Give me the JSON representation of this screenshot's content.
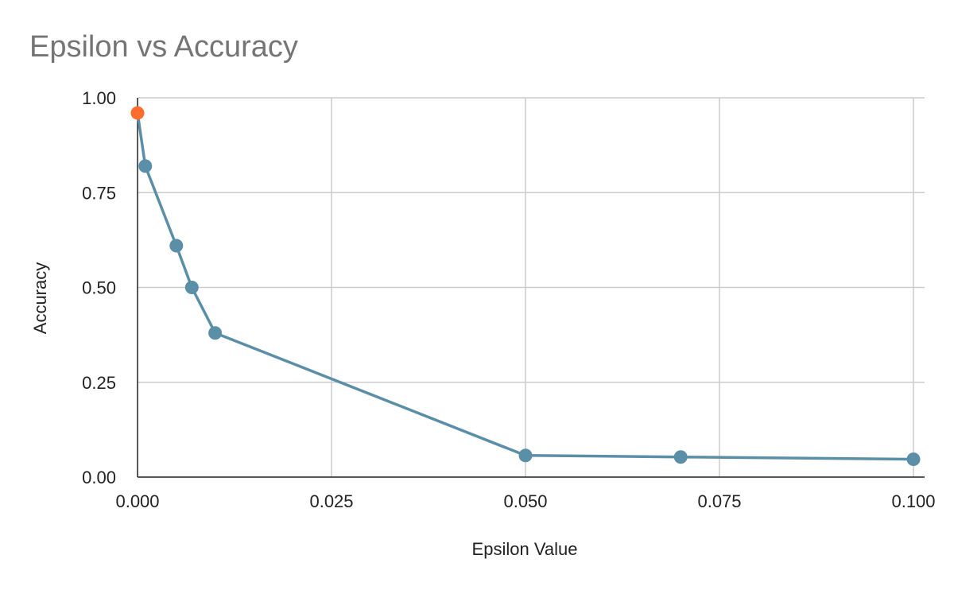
{
  "chart_data": {
    "type": "line",
    "title": "Epsilon vs Accuracy",
    "xlabel": "Epsilon Value",
    "ylabel": "Accuracy",
    "xlim": [
      0,
      0.1
    ],
    "ylim": [
      0,
      1
    ],
    "xticks": [
      "0.000",
      "0.025",
      "0.050",
      "0.075",
      "0.100"
    ],
    "yticks": [
      "0.00",
      "0.25",
      "0.50",
      "0.75",
      "1.00"
    ],
    "grid": true,
    "series": [
      {
        "line_color": "#5b8fa8",
        "x": [
          0,
          0.001,
          0.005,
          0.007,
          0.01,
          0.05,
          0.07,
          0.1
        ],
        "y": [
          0.96,
          0.82,
          0.61,
          0.5,
          0.38,
          0.057,
          0.053,
          0.047
        ],
        "point_colors": [
          "#ff6d2e",
          "#5b8fa8",
          "#5b8fa8",
          "#5b8fa8",
          "#5b8fa8",
          "#5b8fa8",
          "#5b8fa8",
          "#5b8fa8"
        ]
      }
    ]
  }
}
